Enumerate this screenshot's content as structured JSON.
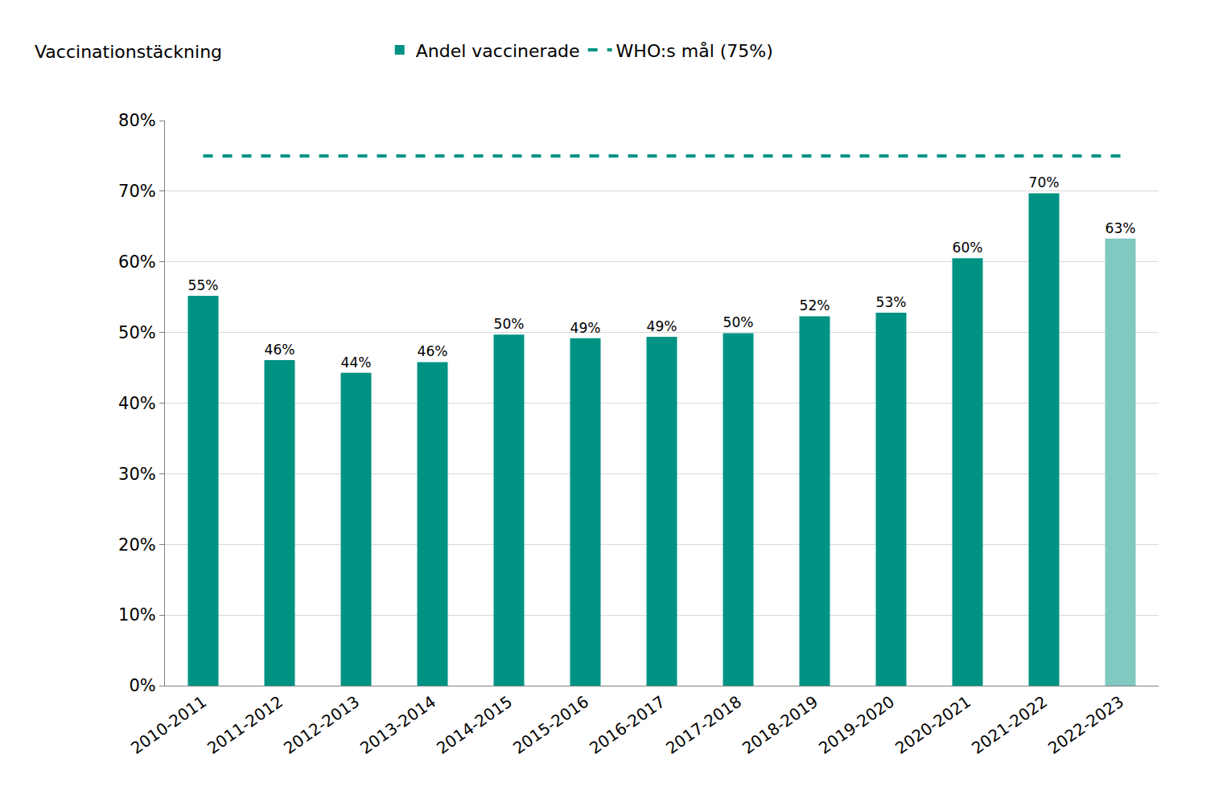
{
  "chart_data": {
    "type": "bar",
    "ylabel": "Vaccinationstäckning",
    "categories": [
      "2010-2011",
      "2011-2012",
      "2012-2013",
      "2013-2014",
      "2014-2015",
      "2015-2016",
      "2016-2017",
      "2017-2018",
      "2018-2019",
      "2019-2020",
      "2020-2021",
      "2021-2022",
      "2022-2023"
    ],
    "series": [
      {
        "name": "Andel vaccinerade",
        "type": "bar",
        "colors": [
          "#009384",
          "#009384",
          "#009384",
          "#009384",
          "#009384",
          "#009384",
          "#009384",
          "#009384",
          "#009384",
          "#009384",
          "#009384",
          "#009384",
          "#80c9c1"
        ],
        "values": [
          55.2,
          46.1,
          44.3,
          45.8,
          49.7,
          49.2,
          49.4,
          49.9,
          52.3,
          52.8,
          60.5,
          69.7,
          63.3
        ],
        "value_labels": [
          "55%",
          "46%",
          "44%",
          "46%",
          "50%",
          "49%",
          "49%",
          "50%",
          "52%",
          "53%",
          "60%",
          "70%",
          "63%"
        ]
      },
      {
        "name": "WHO:s mål (75%)",
        "type": "line",
        "line_style": "dash",
        "color": "#009384",
        "values": [
          75,
          75,
          75,
          75,
          75,
          75,
          75,
          75,
          75,
          75,
          75,
          75,
          75
        ]
      }
    ],
    "ylim": [
      0,
      80
    ],
    "yticks": [
      {
        "value": 0,
        "label": "0%"
      },
      {
        "value": 10,
        "label": "10%"
      },
      {
        "value": 20,
        "label": "20%"
      },
      {
        "value": 30,
        "label": "30%"
      },
      {
        "value": 40,
        "label": "40%"
      },
      {
        "value": 50,
        "label": "50%"
      },
      {
        "value": 60,
        "label": "60%"
      },
      {
        "value": 70,
        "label": "70%"
      },
      {
        "value": 80,
        "label": "80%"
      }
    ],
    "grid": true,
    "legend": "top",
    "data_labels": true
  }
}
